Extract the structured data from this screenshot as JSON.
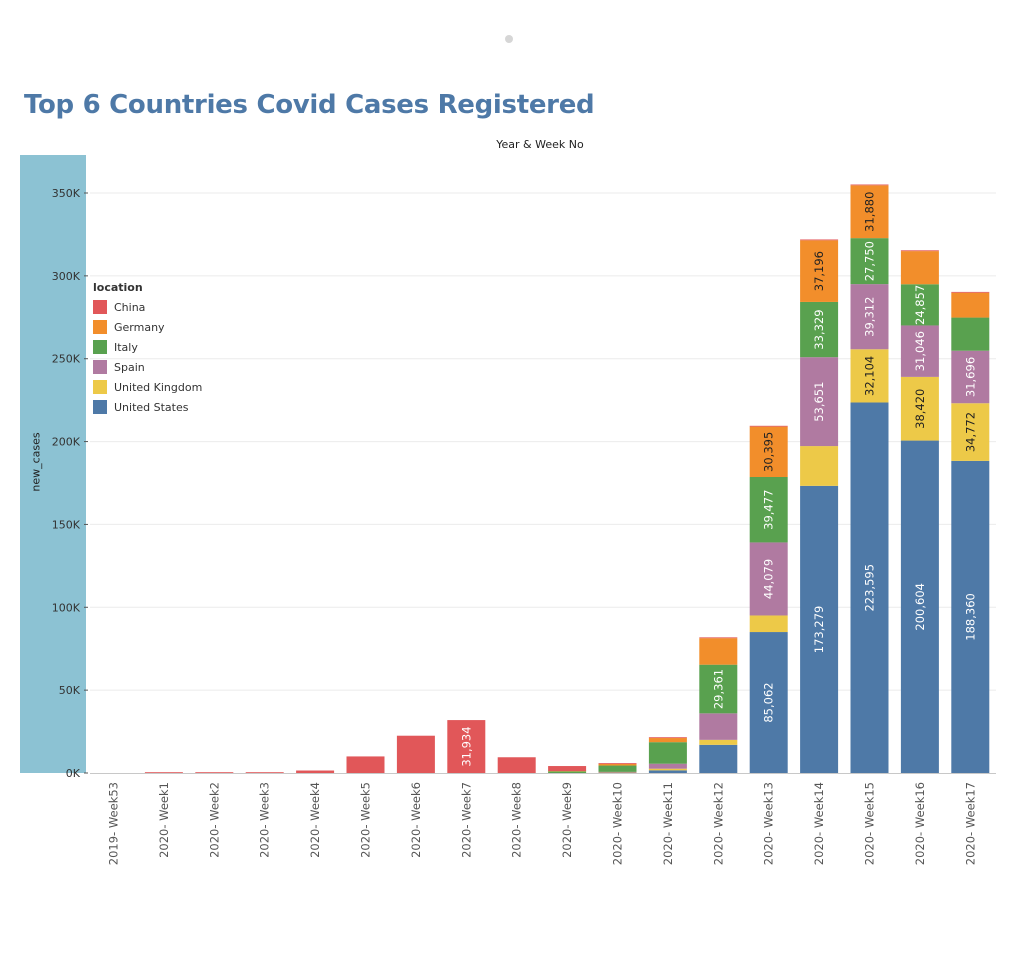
{
  "page": {
    "title": "Top 6 Countries Covid Cases Registered"
  },
  "chart_data": {
    "type": "bar",
    "stacked": true,
    "title": "Top 6 Countries Covid Cases Registered",
    "xlabel": "Year & Week No",
    "ylabel": "new_cases",
    "ylim": [
      0,
      370000
    ],
    "yticks": [
      0,
      50000,
      100000,
      150000,
      200000,
      250000,
      300000,
      350000
    ],
    "ytick_labels": [
      "0K",
      "50K",
      "100K",
      "150K",
      "200K",
      "250K",
      "300K",
      "350K"
    ],
    "grid": true,
    "legend_title": "location",
    "legend_position": "top-left",
    "categories": [
      "2019- Week53",
      "2020- Week1",
      "2020- Week2",
      "2020- Week3",
      "2020- Week4",
      "2020- Week5",
      "2020- Week6",
      "2020- Week7",
      "2020- Week8",
      "2020- Week9",
      "2020- Week10",
      "2020- Week11",
      "2020- Week12",
      "2020- Week13",
      "2020- Week14",
      "2020- Week15",
      "2020- Week16",
      "2020- Week17"
    ],
    "series": [
      {
        "name": "United States",
        "color": "#4e79a7",
        "values": [
          0,
          0,
          0,
          0,
          0,
          0,
          0,
          0,
          0,
          0,
          100,
          1600,
          17000,
          85062,
          173279,
          223595,
          200604,
          188360
        ],
        "labels": [
          "",
          "",
          "",
          "",
          "",
          "",
          "",
          "",
          "",
          "",
          "",
          "",
          "",
          "85,062",
          "173,279",
          "223,595",
          "200,604",
          "188,360"
        ]
      },
      {
        "name": "United Kingdom",
        "color": "#edc948",
        "values": [
          0,
          0,
          0,
          0,
          0,
          0,
          0,
          0,
          0,
          0,
          200,
          1000,
          3000,
          10000,
          24000,
          32104,
          38420,
          34772
        ],
        "labels": [
          "",
          "",
          "",
          "",
          "",
          "",
          "",
          "",
          "",
          "",
          "",
          "",
          "",
          "",
          "",
          "32,104",
          "38,420",
          "34,772"
        ]
      },
      {
        "name": "Spain",
        "color": "#b07aa1",
        "values": [
          0,
          0,
          0,
          0,
          0,
          0,
          0,
          0,
          0,
          0,
          400,
          3000,
          16000,
          44079,
          53651,
          39312,
          31046,
          31696
        ],
        "labels": [
          "",
          "",
          "",
          "",
          "",
          "",
          "",
          "",
          "",
          "",
          "",
          "",
          "",
          "44,079",
          "53,651",
          "39,312",
          "31,046",
          "31,696"
        ]
      },
      {
        "name": "Italy",
        "color": "#59a14f",
        "values": [
          0,
          0,
          0,
          0,
          0,
          0,
          0,
          0,
          0,
          1000,
          3800,
          13000,
          29361,
          39477,
          33329,
          27750,
          24857,
          20000
        ],
        "labels": [
          "",
          "",
          "",
          "",
          "",
          "",
          "",
          "",
          "",
          "",
          "",
          "",
          "29,361",
          "39,477",
          "33,329",
          "27,750",
          "24,857",
          ""
        ]
      },
      {
        "name": "Germany",
        "color": "#f28e2b",
        "values": [
          0,
          0,
          0,
          0,
          0,
          0,
          0,
          0,
          0,
          200,
          1000,
          2500,
          16000,
          30395,
          37196,
          31880,
          20000,
          15000
        ],
        "labels": [
          "",
          "",
          "",
          "",
          "",
          "",
          "",
          "",
          "",
          "",
          "",
          "",
          "",
          "30,395",
          "37,196",
          "31,880",
          "",
          ""
        ]
      },
      {
        "name": "China",
        "color": "#e15759",
        "values": [
          0,
          100,
          200,
          300,
          1500,
          10000,
          22500,
          31934,
          9500,
          3000,
          500,
          300,
          300,
          500,
          500,
          300,
          200,
          100
        ],
        "labels": [
          "",
          "",
          "",
          "",
          "",
          "",
          "",
          "31,934",
          "",
          "",
          "",
          "",
          "",
          "",
          "",
          "",
          "",
          ""
        ]
      }
    ],
    "legend_order": [
      "China",
      "Germany",
      "Italy",
      "Spain",
      "United Kingdom",
      "United States"
    ]
  }
}
